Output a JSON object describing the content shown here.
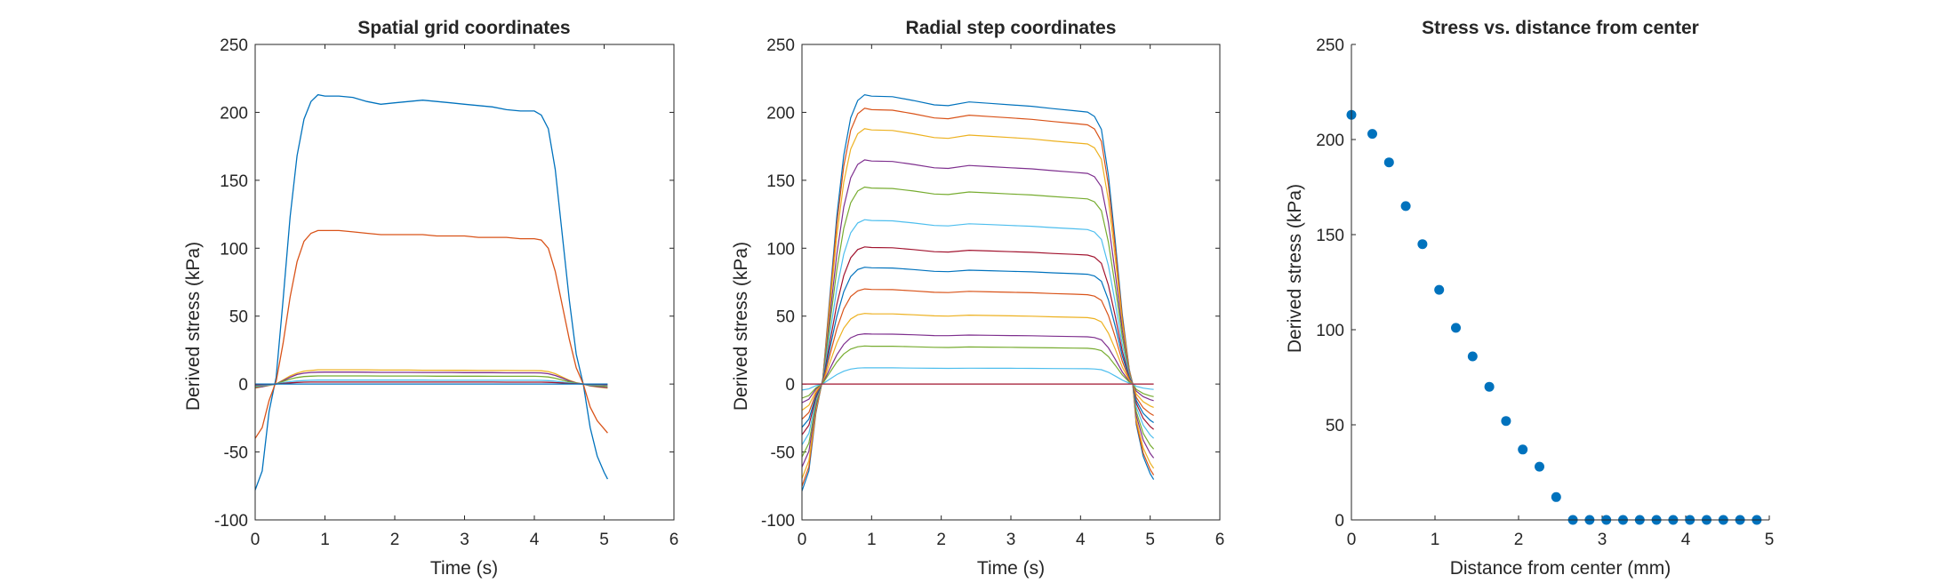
{
  "colors": {
    "axis": "#262626",
    "series": [
      "#0072BD",
      "#D95319",
      "#EDB120",
      "#7E2F8E",
      "#77AC30",
      "#4DBEEE",
      "#A2142F"
    ],
    "scatter": "#0072BD"
  },
  "chart_data": [
    {
      "type": "line",
      "title": "Spatial grid coordinates",
      "xlabel": "Time (s)",
      "ylabel": "Derived stress (kPa)",
      "xlim": [
        0,
        6
      ],
      "ylim": [
        -100,
        250
      ],
      "xticks": [
        "0",
        "1",
        "2",
        "3",
        "4",
        "5",
        "6"
      ],
      "yticks": [
        "-100",
        "-50",
        "0",
        "50",
        "100",
        "150",
        "200",
        "250"
      ],
      "grid": false,
      "x": [
        0,
        0.1,
        0.2,
        0.3,
        0.4,
        0.5,
        0.6,
        0.7,
        0.8,
        0.9,
        1.0,
        1.2,
        1.4,
        1.6,
        1.8,
        2.0,
        2.2,
        2.4,
        2.6,
        2.8,
        3.0,
        3.2,
        3.4,
        3.6,
        3.8,
        4.0,
        4.1,
        4.2,
        4.3,
        4.4,
        4.5,
        4.6,
        4.7,
        4.8,
        4.9,
        5.0,
        5.05
      ],
      "series": [
        {
          "values": [
            -78,
            -64,
            -20,
            5,
            62,
            123,
            168,
            195,
            208,
            213,
            212,
            212,
            211,
            208,
            206,
            207,
            208,
            209,
            208,
            207,
            206,
            205,
            204,
            202,
            201,
            201,
            198,
            188,
            158,
            110,
            62,
            22,
            0,
            -32,
            -53,
            -65,
            -70
          ]
        },
        {
          "values": [
            -40,
            -32,
            -12,
            2,
            30,
            64,
            90,
            105,
            111,
            113,
            113,
            113,
            112,
            111,
            110,
            110,
            110,
            110,
            109,
            109,
            109,
            108,
            108,
            108,
            107,
            107,
            106,
            100,
            83,
            58,
            33,
            12,
            0,
            -17,
            -27,
            -33,
            -36
          ]
        },
        {
          "values": [
            -3,
            -2,
            -1,
            0,
            3,
            6,
            8,
            9.5,
            10,
            10.5,
            10.5,
            10.5,
            10.5,
            10.5,
            10.3,
            10.3,
            10.3,
            10.2,
            10.2,
            10.1,
            10.1,
            10,
            10,
            10,
            9.9,
            9.9,
            9.8,
            9.2,
            7.6,
            5.2,
            2.8,
            1,
            0,
            -1.5,
            -2.2,
            -2.7,
            -3
          ]
        },
        {
          "values": [
            -2.5,
            -2,
            -0.8,
            0,
            2.5,
            5,
            7,
            8,
            8.5,
            8.7,
            8.8,
            8.8,
            8.8,
            8.7,
            8.6,
            8.6,
            8.6,
            8.5,
            8.5,
            8.5,
            8.4,
            8.4,
            8.4,
            8.3,
            8.3,
            8.3,
            8.2,
            7.6,
            6.3,
            4.4,
            2.3,
            0.8,
            0,
            -1.2,
            -1.9,
            -2.3,
            -2.5
          ]
        },
        {
          "values": [
            -2,
            -1.5,
            -0.6,
            0,
            2,
            3.6,
            4.8,
            5.5,
            5.8,
            6,
            6,
            6,
            6,
            6,
            5.9,
            5.9,
            5.9,
            5.9,
            5.8,
            5.8,
            5.8,
            5.8,
            5.7,
            5.7,
            5.7,
            5.7,
            5.6,
            5.2,
            4.3,
            3,
            1.6,
            0.6,
            0,
            -0.8,
            -1.3,
            -1.6,
            -1.8
          ]
        },
        {
          "values": [
            -1.2,
            -1,
            -0.4,
            0,
            1,
            1.8,
            2.3,
            2.6,
            2.8,
            2.9,
            2.9,
            2.9,
            2.9,
            2.9,
            2.9,
            2.9,
            2.9,
            2.9,
            2.8,
            2.8,
            2.8,
            2.8,
            2.8,
            2.8,
            2.8,
            2.8,
            2.7,
            2.5,
            2.1,
            1.5,
            0.8,
            0.3,
            0,
            -0.4,
            -0.6,
            -0.8,
            -0.9
          ]
        },
        {
          "values": [
            -0.6,
            -0.5,
            -0.2,
            0,
            0.5,
            0.9,
            1.2,
            1.4,
            1.5,
            1.5,
            1.5,
            1.5,
            1.5,
            1.5,
            1.5,
            1.5,
            1.5,
            1.5,
            1.5,
            1.5,
            1.5,
            1.5,
            1.5,
            1.4,
            1.4,
            1.4,
            1.4,
            1.3,
            1.1,
            0.8,
            0.4,
            0.2,
            0,
            -0.2,
            -0.3,
            -0.4,
            -0.5
          ]
        },
        {
          "values": [
            0,
            0,
            0,
            0,
            0,
            0,
            0,
            0,
            0,
            0,
            0,
            0,
            0,
            0,
            0,
            0,
            0,
            0,
            0,
            0,
            0,
            0,
            0,
            0,
            0,
            0,
            0,
            0,
            0,
            0,
            0,
            0,
            0,
            0,
            0,
            0,
            0
          ]
        }
      ]
    },
    {
      "type": "line",
      "title": "Radial step coordinates",
      "xlabel": "Time (s)",
      "ylabel": "Derived stress (kPa)",
      "xlim": [
        0,
        6
      ],
      "ylim": [
        -100,
        250
      ],
      "xticks": [
        "0",
        "1",
        "2",
        "3",
        "4",
        "5",
        "6"
      ],
      "yticks": [
        "-100",
        "-50",
        "0",
        "50",
        "100",
        "150",
        "200",
        "250"
      ],
      "grid": false,
      "plateau_profile": [
        [
          0,
          -0.37
        ],
        [
          0.1,
          -0.3
        ],
        [
          0.2,
          -0.1
        ],
        [
          0.3,
          0.02
        ],
        [
          0.4,
          0.3
        ],
        [
          0.5,
          0.58
        ],
        [
          0.6,
          0.79
        ],
        [
          0.7,
          0.92
        ],
        [
          0.8,
          0.98
        ],
        [
          0.9,
          1.0
        ],
        [
          1.0,
          0.995
        ],
        [
          1.3,
          0.993
        ],
        [
          1.6,
          0.98
        ],
        [
          1.9,
          0.965
        ],
        [
          2.1,
          0.962
        ],
        [
          2.4,
          0.975
        ],
        [
          2.7,
          0.97
        ],
        [
          3.0,
          0.965
        ],
        [
          3.3,
          0.96
        ],
        [
          3.6,
          0.952
        ],
        [
          3.9,
          0.945
        ],
        [
          4.1,
          0.94
        ],
        [
          4.2,
          0.925
        ],
        [
          4.3,
          0.88
        ],
        [
          4.4,
          0.72
        ],
        [
          4.5,
          0.49
        ],
        [
          4.6,
          0.24
        ],
        [
          4.7,
          0.05
        ],
        [
          4.75,
          0.0
        ],
        [
          4.8,
          -0.14
        ],
        [
          4.9,
          -0.25
        ],
        [
          5.0,
          -0.31
        ],
        [
          5.05,
          -0.33
        ]
      ],
      "series_peaks": [
        213,
        203,
        188,
        165,
        145,
        121,
        101,
        86,
        70,
        52,
        37,
        28,
        12,
        0
      ]
    },
    {
      "type": "scatter",
      "title": "Stress vs. distance from center",
      "xlabel": "Distance from center (mm)",
      "ylabel": "Derived stress (kPa)",
      "xlim": [
        0,
        5
      ],
      "ylim": [
        0,
        250
      ],
      "xticks": [
        "0",
        "1",
        "2",
        "3",
        "4",
        "5"
      ],
      "yticks": [
        "0",
        "50",
        "100",
        "150",
        "200",
        "250"
      ],
      "grid": false,
      "x": [
        0,
        0.25,
        0.45,
        0.65,
        0.85,
        1.05,
        1.25,
        1.45,
        1.65,
        1.85,
        2.05,
        2.25,
        2.45,
        2.65,
        2.85,
        3.05,
        3.25,
        3.45,
        3.65,
        3.85,
        4.05,
        4.25,
        4.45,
        4.65,
        4.85
      ],
      "y": [
        213,
        203,
        188,
        165,
        145,
        121,
        101,
        86,
        70,
        52,
        37,
        28,
        12,
        0,
        0,
        0,
        0,
        0,
        0,
        0,
        0,
        0,
        0,
        0,
        0
      ]
    }
  ]
}
